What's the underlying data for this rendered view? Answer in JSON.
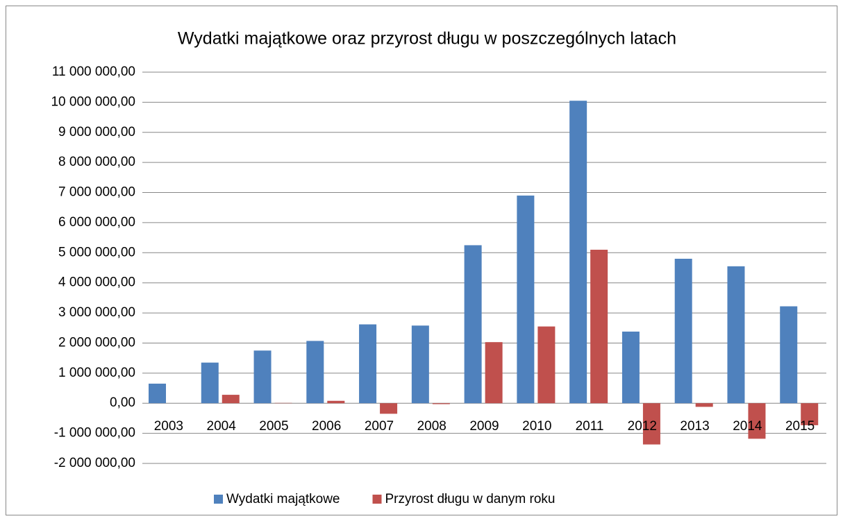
{
  "chart_data": {
    "type": "bar",
    "title": "Wydatki majątkowe oraz przyrost długu w poszczególnych latach",
    "categories": [
      "2003",
      "2004",
      "2005",
      "2006",
      "2007",
      "2008",
      "2009",
      "2010",
      "2011",
      "2012",
      "2013",
      "2014",
      "2015"
    ],
    "series": [
      {
        "name": "Wydatki majątkowe",
        "color": "#4f81bd",
        "values": [
          650000,
          1350000,
          1750000,
          2070000,
          2620000,
          2580000,
          5250000,
          6900000,
          10050000,
          2380000,
          4800000,
          4550000,
          3220000
        ]
      },
      {
        "name": "Przyrost długu w danym roku",
        "color": "#c0504d",
        "values": [
          0,
          280000,
          10000,
          80000,
          -350000,
          -30000,
          2030000,
          2550000,
          5100000,
          -1370000,
          -120000,
          -1180000,
          -730000
        ]
      }
    ],
    "ylim": [
      -2000000,
      11000000
    ],
    "yticks": [
      {
        "value": -2000000,
        "label": "-2 000 000,00"
      },
      {
        "value": -1000000,
        "label": "-1 000 000,00"
      },
      {
        "value": 0,
        "label": "0,00"
      },
      {
        "value": 1000000,
        "label": "1 000 000,00"
      },
      {
        "value": 2000000,
        "label": "2 000 000,00"
      },
      {
        "value": 3000000,
        "label": "3 000 000,00"
      },
      {
        "value": 4000000,
        "label": "4 000 000,00"
      },
      {
        "value": 5000000,
        "label": "5 000 000,00"
      },
      {
        "value": 6000000,
        "label": "6 000 000,00"
      },
      {
        "value": 7000000,
        "label": "7 000 000,00"
      },
      {
        "value": 8000000,
        "label": "8 000 000,00"
      },
      {
        "value": 9000000,
        "label": "9 000 000,00"
      },
      {
        "value": 10000000,
        "label": "10 000 000,00"
      },
      {
        "value": 11000000,
        "label": "11 000 000,00"
      }
    ],
    "grid": true,
    "legend": "bottom"
  }
}
